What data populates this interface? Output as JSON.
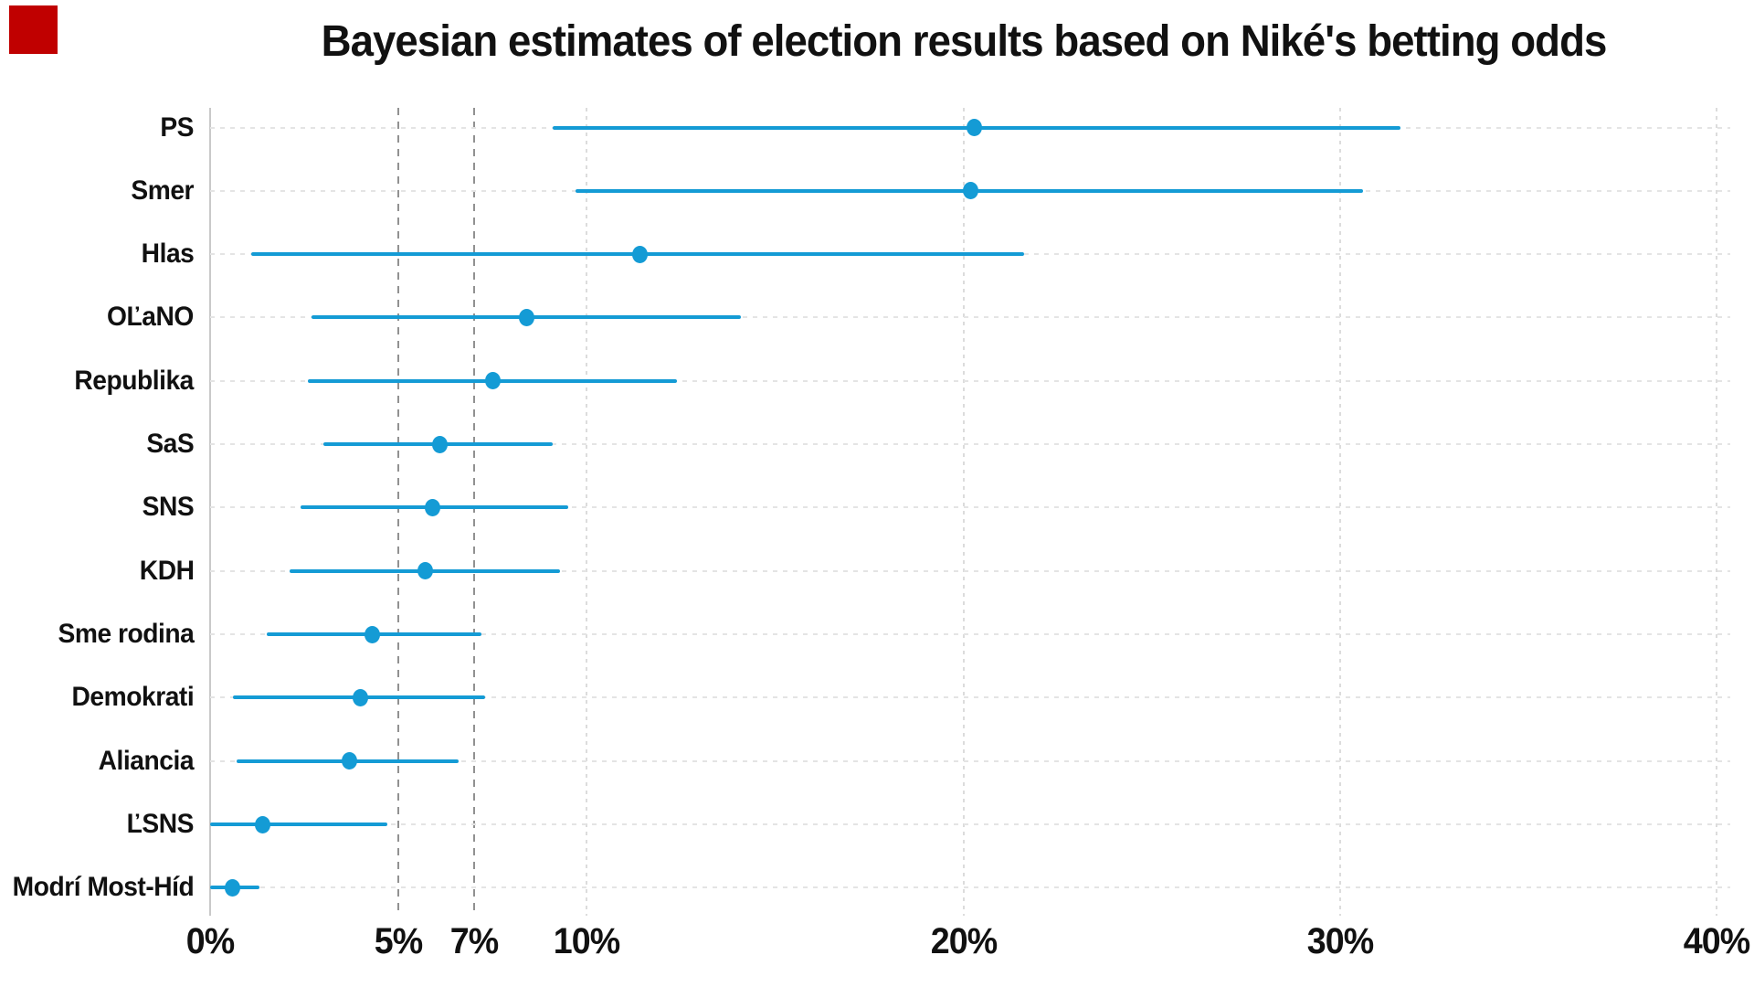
{
  "title": "Bayesian estimates of election results based on Niké's betting odds",
  "marker": {
    "color": "#c00000"
  },
  "chart_data": {
    "type": "scatter",
    "subtype": "dot-with-horizontal-confidence-interval",
    "title": "Bayesian estimates of election results based on Niké's betting odds",
    "xlabel": "",
    "ylabel": "",
    "xlim": [
      0,
      40
    ],
    "x_ticks": [
      "0%",
      "5%",
      "7%",
      "10%",
      "20%",
      "30%",
      "40%"
    ],
    "x_tick_values": [
      0,
      5,
      7,
      10,
      20,
      30,
      40
    ],
    "reference_lines_dashed": [
      5,
      7
    ],
    "grid": "horizontal dotted per category, faint vertical at major ticks",
    "legend": "none",
    "accent_color": "#149bd5",
    "categories": [
      "PS",
      "Smer",
      "Hlas",
      "OĽaNO",
      "Republika",
      "SaS",
      "SNS",
      "KDH",
      "Sme rodina",
      "Demokrati",
      "Aliancia",
      "ĽSNS",
      "Modrí Most-Híd"
    ],
    "points": [
      {
        "party": "PS",
        "low": 9.1,
        "estimate": 20.3,
        "high": 31.6
      },
      {
        "party": "Smer",
        "low": 9.7,
        "estimate": 20.2,
        "high": 30.6
      },
      {
        "party": "Hlas",
        "low": 1.1,
        "estimate": 11.4,
        "high": 21.6
      },
      {
        "party": "OĽaNO",
        "low": 2.7,
        "estimate": 8.4,
        "high": 14.1
      },
      {
        "party": "Republika",
        "low": 2.6,
        "estimate": 7.5,
        "high": 12.4
      },
      {
        "party": "SaS",
        "low": 3.0,
        "estimate": 6.1,
        "high": 9.1
      },
      {
        "party": "SNS",
        "low": 2.4,
        "estimate": 5.9,
        "high": 9.5
      },
      {
        "party": "KDH",
        "low": 2.1,
        "estimate": 5.7,
        "high": 9.3
      },
      {
        "party": "Sme rodina",
        "low": 1.5,
        "estimate": 4.3,
        "high": 7.2
      },
      {
        "party": "Demokrati",
        "low": 0.6,
        "estimate": 4.0,
        "high": 7.3
      },
      {
        "party": "Aliancia",
        "low": 0.7,
        "estimate": 3.7,
        "high": 6.6
      },
      {
        "party": "ĽSNS",
        "low": 0.0,
        "estimate": 1.4,
        "high": 4.7
      },
      {
        "party": "Modrí Most-Híd",
        "low": 0.0,
        "estimate": 0.6,
        "high": 1.3
      }
    ]
  }
}
